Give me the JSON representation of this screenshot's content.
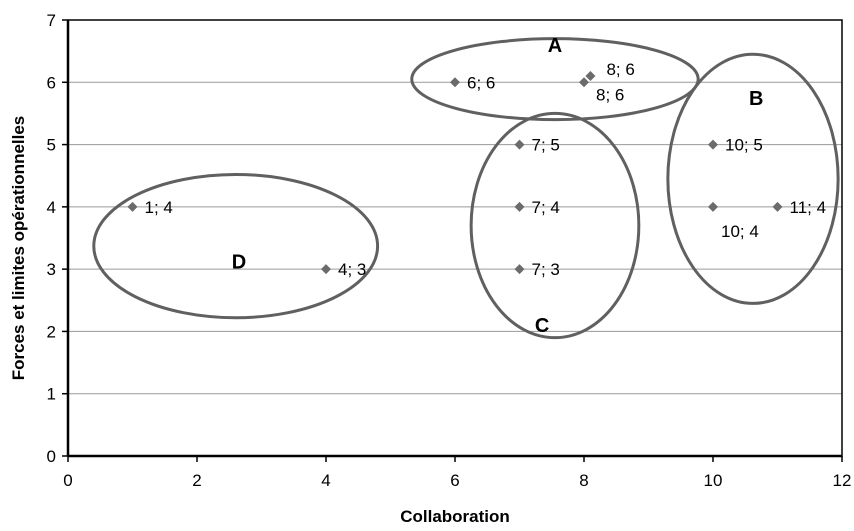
{
  "chart_data": {
    "type": "scatter",
    "title": "",
    "xlabel": "Collaboration",
    "ylabel": "Forces et limites opérationnelles",
    "xlim": [
      0,
      12
    ],
    "ylim": [
      0,
      7
    ],
    "x_ticks": [
      "0",
      "2",
      "4",
      "6",
      "8",
      "10",
      "12"
    ],
    "y_ticks": [
      "0",
      "1",
      "2",
      "3",
      "4",
      "5",
      "6",
      "7"
    ],
    "grid": "horizontal",
    "legend": "none",
    "marker_color": "#6b6b6b",
    "series": [
      {
        "points": [
          {
            "x": 1,
            "y": 4,
            "label": "1; 4"
          },
          {
            "x": 4,
            "y": 3,
            "label": "4; 3"
          },
          {
            "x": 6,
            "y": 6,
            "label": "6; 6"
          },
          {
            "x": 7,
            "y": 5,
            "label": "7; 5"
          },
          {
            "x": 7,
            "y": 4,
            "label": "7; 4"
          },
          {
            "x": 7,
            "y": 3,
            "label": "7; 3"
          },
          {
            "x": 8,
            "y": 6,
            "label": "8; 6"
          },
          {
            "x": 8.1,
            "y": 6.1,
            "label": "8; 6"
          },
          {
            "x": 10,
            "y": 5,
            "label": "10; 5"
          },
          {
            "x": 10,
            "y": 4,
            "label": "10; 4"
          },
          {
            "x": 11,
            "y": 4,
            "label": "11; 4"
          }
        ]
      }
    ],
    "groups": [
      {
        "label": "A",
        "cx": 7.55,
        "cy": 6.05,
        "rx": 2.22,
        "ry": 0.65
      },
      {
        "label": "B",
        "cx": 10.62,
        "cy": 4.45,
        "rx": 1.32,
        "ry": 2.0
      },
      {
        "label": "C",
        "cx": 7.55,
        "cy": 3.7,
        "rx": 1.3,
        "ry": 1.8
      },
      {
        "label": "D",
        "cx": 2.6,
        "cy": 3.37,
        "rx": 2.2,
        "ry": 1.15
      }
    ]
  }
}
